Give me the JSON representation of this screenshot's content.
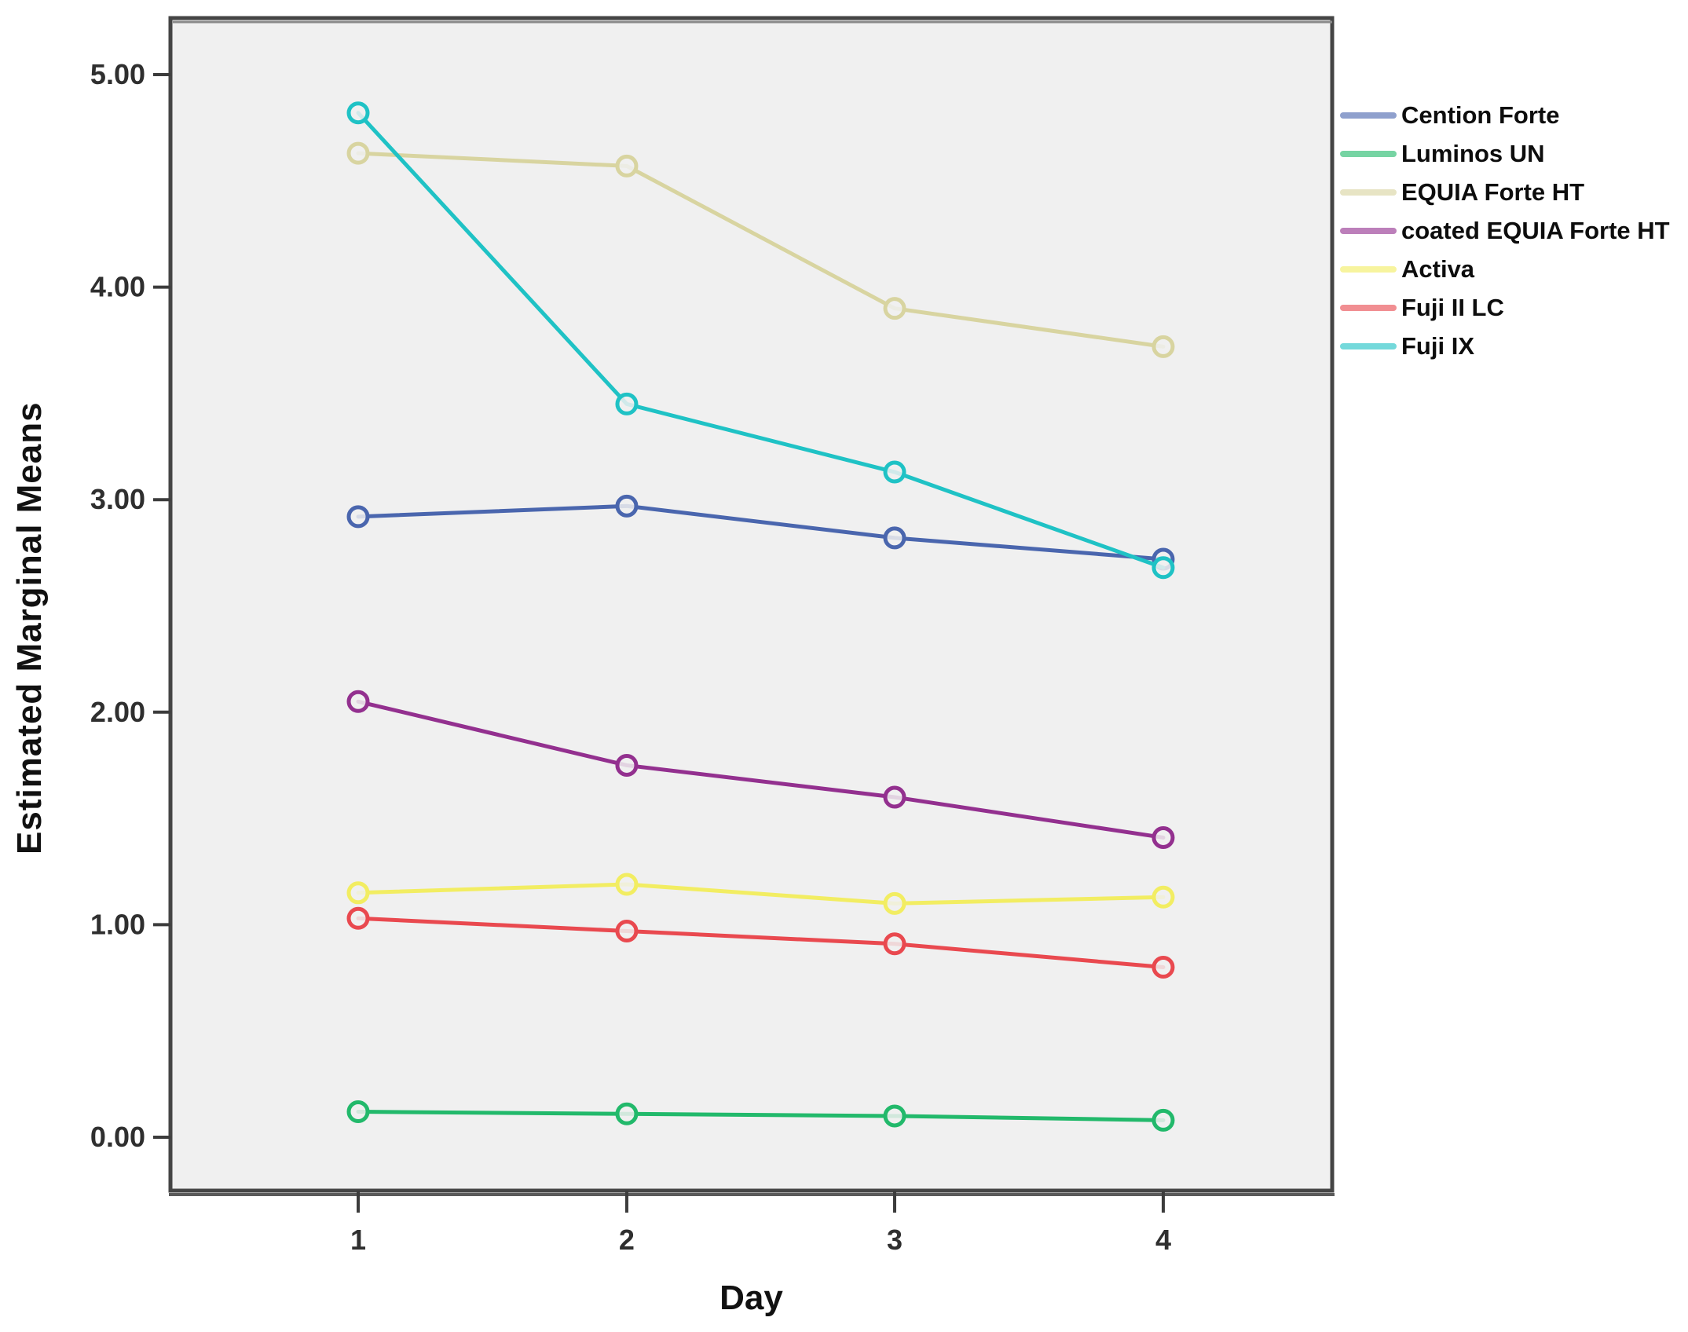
{
  "chart_data": {
    "type": "line",
    "x": [
      1,
      2,
      3,
      4
    ],
    "xticklabels": [
      "1",
      "2",
      "3",
      "4"
    ],
    "yticks": [
      0,
      1,
      2,
      3,
      4,
      5
    ],
    "yticklabels": [
      "0.00",
      "1.00",
      "2.00",
      "3.00",
      "4.00",
      "5.00"
    ],
    "ylim": [
      0,
      5
    ],
    "xlabel": "Day",
    "ylabel": "Estimated Marginal Means",
    "grid": false,
    "legend_position": "right",
    "series": [
      {
        "name": "Cention Forte",
        "color": "#4a66ae",
        "values": [
          2.92,
          2.97,
          2.82,
          2.72
        ]
      },
      {
        "name": "Luminos UN",
        "color": "#22b96b",
        "values": [
          0.12,
          0.11,
          0.1,
          0.08
        ]
      },
      {
        "name": "EQUIA Forte HT",
        "color": "#d8d4a0",
        "values": [
          4.63,
          4.57,
          3.9,
          3.72
        ]
      },
      {
        "name": "coated EQUIA Forte HT",
        "color": "#93308f",
        "values": [
          2.05,
          1.75,
          1.6,
          1.41
        ]
      },
      {
        "name": "Activa",
        "color": "#f2ed62",
        "values": [
          1.15,
          1.19,
          1.1,
          1.13
        ]
      },
      {
        "name": "Fuji II LC",
        "color": "#e9494f",
        "values": [
          1.03,
          0.97,
          0.91,
          0.8
        ]
      },
      {
        "name": "Fuji IX",
        "color": "#1fc2c5",
        "values": [
          4.82,
          3.45,
          3.13,
          2.68
        ]
      }
    ],
    "styles": {
      "plot_bg": "#f0f0f0",
      "frame_color": "#454545",
      "tick_color": "#3c3c3c",
      "tick_label_color": "#2f2f2f"
    }
  }
}
